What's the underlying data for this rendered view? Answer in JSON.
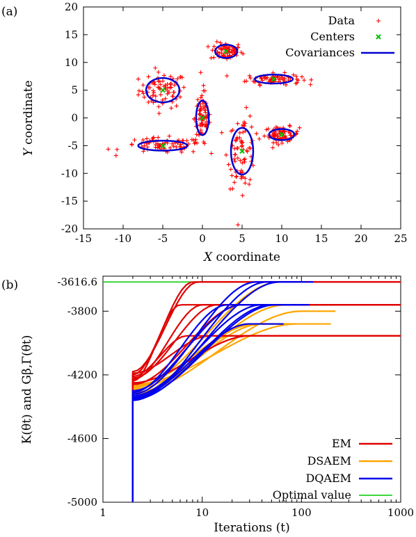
{
  "chart_data": [
    {
      "type": "scatter",
      "panel_label": "(a)",
      "xlabel_var": "X",
      "xlabel": " coordinate",
      "ylabel_var": "Y",
      "ylabel": " coordinate",
      "xlim": [
        -15,
        25
      ],
      "ylim": [
        -20,
        20
      ],
      "xticks": [
        -15,
        -10,
        -5,
        0,
        5,
        10,
        15,
        20,
        25
      ],
      "yticks": [
        -20,
        -15,
        -10,
        -5,
        0,
        5,
        10,
        15,
        20
      ],
      "legend_position": "top-right",
      "legend": [
        "Data",
        "Centers",
        "Covariances"
      ],
      "colors": {
        "data": "#ff0000",
        "centers": "#00c000",
        "covariances": "#0000d0"
      },
      "centers": [
        {
          "x": -5.0,
          "y": 5.0
        },
        {
          "x": 3.0,
          "y": 12.0
        },
        {
          "x": 9.0,
          "y": 7.0
        },
        {
          "x": 10.0,
          "y": -3.0
        },
        {
          "x": 0.0,
          "y": 0.0
        },
        {
          "x": -5.0,
          "y": -5.0
        },
        {
          "x": 5.0,
          "y": -6.0
        }
      ],
      "covariances": [
        {
          "cx": -5.0,
          "cy": 5.0,
          "rx": 2.1,
          "ry": 2.2
        },
        {
          "cx": 3.0,
          "cy": 12.0,
          "rx": 1.4,
          "ry": 1.2
        },
        {
          "cx": 9.0,
          "cy": 7.0,
          "rx": 2.4,
          "ry": 0.8
        },
        {
          "cx": 10.0,
          "cy": -3.0,
          "rx": 1.6,
          "ry": 1.0
        },
        {
          "cx": 0.0,
          "cy": 0.0,
          "rx": 0.8,
          "ry": 3.1
        },
        {
          "cx": -5.0,
          "cy": -5.0,
          "rx": 3.1,
          "ry": 0.9
        },
        {
          "cx": 5.0,
          "cy": -6.0,
          "rx": 1.4,
          "ry": 4.2
        }
      ],
      "data_spread": [
        {
          "cx": -5.0,
          "cy": 5.0,
          "sx": 1.5,
          "sy": 1.6,
          "n": 75
        },
        {
          "cx": 3.0,
          "cy": 12.0,
          "sx": 1.0,
          "sy": 0.8,
          "n": 75
        },
        {
          "cx": 9.0,
          "cy": 7.0,
          "sx": 1.7,
          "sy": 0.5,
          "n": 75
        },
        {
          "cx": 10.0,
          "cy": -3.0,
          "sx": 1.1,
          "sy": 0.7,
          "n": 75
        },
        {
          "cx": 0.0,
          "cy": 0.0,
          "sx": 0.5,
          "sy": 2.5,
          "n": 75
        },
        {
          "cx": -5.0,
          "cy": -5.0,
          "sx": 2.6,
          "sy": 0.7,
          "n": 75
        },
        {
          "cx": 5.0,
          "cy": -6.0,
          "sx": 0.9,
          "sy": 3.3,
          "n": 75
        }
      ]
    },
    {
      "type": "line",
      "panel_label": "(b)",
      "xlabel": "Iterations (t)",
      "ylabel": "K(θt) and Gβ,Γ(θt)",
      "xscale": "log",
      "xlim": [
        1,
        1000
      ],
      "ylim": [
        -5000,
        -3580
      ],
      "xticks": [
        "1",
        "10",
        "100",
        "1000"
      ],
      "yticks": [
        "-5000",
        "-4600",
        "-4200",
        "-3800",
        "-3616.6"
      ],
      "ytick_values": [
        -5000,
        -4600,
        -4200,
        -3800,
        -3616.6
      ],
      "legend_position": "bottom-right",
      "legend": [
        "EM",
        "DSAEM",
        "DQAEM",
        "Optimal value"
      ],
      "optimal_value": -3616.6,
      "series": [
        {
          "name": "EM",
          "color": "#e00000",
          "finals": [
            -3616.6,
            -3616.6,
            -3760,
            -3760,
            -3760,
            -3760,
            -3955,
            -3955,
            -3955
          ],
          "starts": [
            -4180,
            -4200,
            -4220,
            -4240,
            -4260,
            -4230,
            -4210,
            -4250,
            -4190
          ],
          "plateau_t": [
            9,
            8,
            14,
            6,
            25,
            10,
            7,
            30,
            12
          ]
        },
        {
          "name": "DSAEM",
          "color": "#ffa500",
          "finals": [
            -3616.6,
            -3760,
            -3880,
            -3880,
            -3880,
            -3760,
            -3800,
            -3880,
            -3955
          ],
          "starts": [
            -4280,
            -4300,
            -4320,
            -4260,
            -4340,
            -4290,
            -4310,
            -4270,
            -4330
          ],
          "plateau_t": [
            60,
            25,
            40,
            90,
            30,
            70,
            100,
            35,
            20
          ]
        },
        {
          "name": "DQAEM",
          "color": "#0000ee",
          "finals": [
            -3616.6,
            -3616.6,
            -3616.6,
            -3760,
            -3760,
            -3760,
            -3760,
            -3880,
            -3760
          ],
          "starts": [
            -4320,
            -4340,
            -4360,
            -4300,
            -4350,
            -4310,
            -4330,
            -4345,
            -4355
          ],
          "plateau_t": [
            35,
            60,
            45,
            25,
            55,
            18,
            40,
            30,
            50
          ]
        },
        {
          "name": "Optimal value",
          "color": "#00c800",
          "values_const": -3616.6
        }
      ]
    }
  ]
}
